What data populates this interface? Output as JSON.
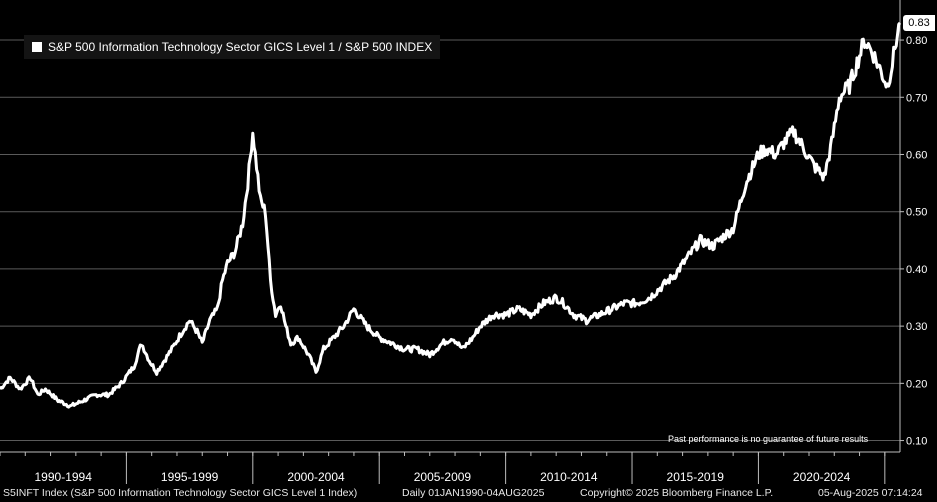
{
  "chart_data": {
    "type": "line",
    "title": "",
    "ylim": [
      0.08,
      0.87
    ],
    "y_ticks": [
      0.1,
      0.2,
      0.3,
      0.4,
      0.5,
      0.6,
      0.7,
      0.8
    ],
    "y_tick_labels": [
      "0.10",
      "0.20",
      "0.30",
      "0.40",
      "0.50",
      "0.60",
      "0.70",
      "0.80"
    ],
    "x_range_years": [
      1990.0,
      2025.6
    ],
    "x_periods": [
      "1990-1994",
      "1995-1999",
      "2000-2004",
      "2005-2009",
      "2010-2014",
      "2015-2019",
      "2020-2024"
    ],
    "legend": [
      "S&P 500 Information Technology Sector GICS Level 1 / S&P 500 INDEX"
    ],
    "last_value_label": "0.83",
    "series": [
      {
        "name": "S&P 500 Information Technology Sector GICS Level 1 / S&P 500 INDEX",
        "x": [
          1990.0,
          1990.4,
          1990.8,
          1991.2,
          1991.5,
          1991.8,
          1992.3,
          1992.8,
          1993.3,
          1993.8,
          1994.3,
          1994.8,
          1995.3,
          1995.6,
          1995.9,
          1996.2,
          1996.5,
          1996.8,
          1997.2,
          1997.5,
          1997.8,
          1998.0,
          1998.3,
          1998.6,
          1998.8,
          1999.0,
          1999.3,
          1999.6,
          1999.8,
          2000.0,
          2000.15,
          2000.3,
          2000.5,
          2000.7,
          2000.9,
          2001.1,
          2001.3,
          2001.5,
          2001.8,
          2002.2,
          2002.5,
          2002.8,
          2003.2,
          2003.6,
          2004.0,
          2004.5,
          2005.0,
          2005.5,
          2006.0,
          2006.5,
          2007.0,
          2007.5,
          2007.9,
          2008.3,
          2008.7,
          2009.0,
          2009.5,
          2010.0,
          2010.5,
          2011.0,
          2011.5,
          2012.0,
          2012.3,
          2012.7,
          2013.2,
          2013.7,
          2014.2,
          2014.7,
          2015.2,
          2015.7,
          2016.2,
          2016.7,
          2017.2,
          2017.7,
          2018.2,
          2018.7,
          2019.0,
          2019.5,
          2020.0,
          2020.3,
          2020.7,
          2021.0,
          2021.4,
          2021.8,
          2022.2,
          2022.6,
          2022.9,
          2023.2,
          2023.6,
          2023.9,
          2024.2,
          2024.5,
          2024.8,
          2025.1,
          2025.3,
          2025.45,
          2025.6
        ],
        "y": [
          0.19,
          0.21,
          0.19,
          0.21,
          0.18,
          0.19,
          0.17,
          0.16,
          0.17,
          0.18,
          0.18,
          0.2,
          0.23,
          0.27,
          0.24,
          0.22,
          0.24,
          0.26,
          0.29,
          0.31,
          0.29,
          0.27,
          0.31,
          0.33,
          0.38,
          0.41,
          0.43,
          0.48,
          0.55,
          0.64,
          0.58,
          0.52,
          0.5,
          0.38,
          0.32,
          0.34,
          0.3,
          0.27,
          0.28,
          0.25,
          0.22,
          0.26,
          0.28,
          0.3,
          0.33,
          0.3,
          0.28,
          0.27,
          0.26,
          0.26,
          0.25,
          0.27,
          0.28,
          0.26,
          0.28,
          0.3,
          0.32,
          0.32,
          0.33,
          0.32,
          0.34,
          0.35,
          0.34,
          0.32,
          0.31,
          0.32,
          0.33,
          0.34,
          0.34,
          0.35,
          0.37,
          0.39,
          0.42,
          0.45,
          0.44,
          0.46,
          0.47,
          0.55,
          0.6,
          0.61,
          0.6,
          0.62,
          0.64,
          0.61,
          0.58,
          0.56,
          0.62,
          0.7,
          0.72,
          0.76,
          0.8,
          0.78,
          0.75,
          0.72,
          0.76,
          0.8,
          0.83
        ]
      }
    ]
  },
  "footer": {
    "ticker": "S5INFT Index (S&P 500 Information Technology Sector GICS Level 1 Index)",
    "range": "Daily 01JAN1990-04AUG2025",
    "copyright": "Copyright© 2025 Bloomberg Finance L.P.",
    "timestamp": "05-Aug-2025 07:14:24"
  },
  "disclaimer": "Past performance is no guarantee of future results"
}
